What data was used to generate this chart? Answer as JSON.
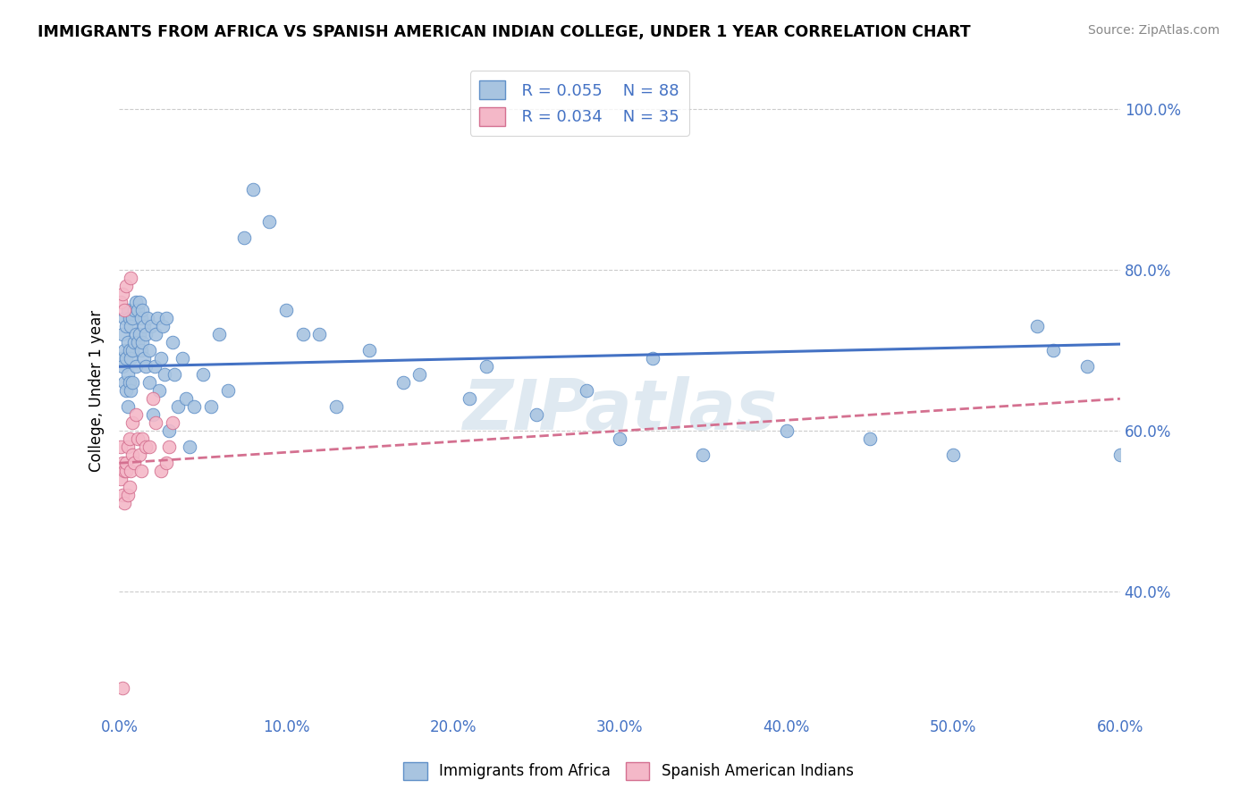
{
  "title": "IMMIGRANTS FROM AFRICA VS SPANISH AMERICAN INDIAN COLLEGE, UNDER 1 YEAR CORRELATION CHART",
  "source": "Source: ZipAtlas.com",
  "ylabel": "College, Under 1 year",
  "legend_blue_r": "R = 0.055",
  "legend_blue_n": "N = 88",
  "legend_pink_r": "R = 0.034",
  "legend_pink_n": "N = 35",
  "legend_label_blue": "Immigrants from Africa",
  "legend_label_pink": "Spanish American Indians",
  "blue_color": "#a8c4e0",
  "pink_color": "#f4b8c8",
  "blue_edge_color": "#6090c8",
  "pink_edge_color": "#d47090",
  "blue_line_color": "#4472c4",
  "pink_line_color": "#d47090",
  "text_color_blue": "#4472c4",
  "watermark": "ZIPatlas",
  "blue_scatter_x": [
    0.001,
    0.002,
    0.002,
    0.003,
    0.003,
    0.003,
    0.004,
    0.004,
    0.004,
    0.005,
    0.005,
    0.005,
    0.005,
    0.006,
    0.006,
    0.006,
    0.007,
    0.007,
    0.007,
    0.008,
    0.008,
    0.008,
    0.009,
    0.009,
    0.01,
    0.01,
    0.01,
    0.011,
    0.011,
    0.012,
    0.012,
    0.013,
    0.013,
    0.014,
    0.014,
    0.015,
    0.015,
    0.016,
    0.016,
    0.017,
    0.018,
    0.018,
    0.019,
    0.02,
    0.021,
    0.022,
    0.023,
    0.024,
    0.025,
    0.026,
    0.027,
    0.028,
    0.03,
    0.032,
    0.033,
    0.035,
    0.038,
    0.04,
    0.042,
    0.045,
    0.05,
    0.055,
    0.06,
    0.065,
    0.075,
    0.08,
    0.09,
    0.1,
    0.12,
    0.15,
    0.18,
    0.21,
    0.25,
    0.3,
    0.35,
    0.4,
    0.45,
    0.5,
    0.55,
    0.56,
    0.58,
    0.6,
    0.32,
    0.28,
    0.22,
    0.17,
    0.13,
    0.11
  ],
  "blue_scatter_y": [
    0.69,
    0.72,
    0.68,
    0.74,
    0.7,
    0.66,
    0.73,
    0.69,
    0.65,
    0.75,
    0.71,
    0.67,
    0.63,
    0.74,
    0.7,
    0.66,
    0.73,
    0.69,
    0.65,
    0.74,
    0.7,
    0.66,
    0.75,
    0.71,
    0.76,
    0.72,
    0.68,
    0.75,
    0.71,
    0.76,
    0.72,
    0.74,
    0.7,
    0.75,
    0.71,
    0.73,
    0.69,
    0.72,
    0.68,
    0.74,
    0.7,
    0.66,
    0.73,
    0.62,
    0.68,
    0.72,
    0.74,
    0.65,
    0.69,
    0.73,
    0.67,
    0.74,
    0.6,
    0.71,
    0.67,
    0.63,
    0.69,
    0.64,
    0.58,
    0.63,
    0.67,
    0.63,
    0.72,
    0.65,
    0.84,
    0.9,
    0.86,
    0.75,
    0.72,
    0.7,
    0.67,
    0.64,
    0.62,
    0.59,
    0.57,
    0.6,
    0.59,
    0.57,
    0.73,
    0.7,
    0.68,
    0.57,
    0.69,
    0.65,
    0.68,
    0.66,
    0.63,
    0.72
  ],
  "pink_scatter_x": [
    0.001,
    0.001,
    0.001,
    0.002,
    0.002,
    0.002,
    0.003,
    0.003,
    0.003,
    0.004,
    0.004,
    0.004,
    0.005,
    0.005,
    0.006,
    0.006,
    0.007,
    0.007,
    0.008,
    0.008,
    0.009,
    0.01,
    0.011,
    0.012,
    0.013,
    0.014,
    0.016,
    0.018,
    0.02,
    0.022,
    0.025,
    0.028,
    0.03,
    0.032,
    0.002
  ],
  "pink_scatter_y": [
    0.58,
    0.54,
    0.76,
    0.56,
    0.52,
    0.77,
    0.55,
    0.51,
    0.75,
    0.55,
    0.78,
    0.56,
    0.58,
    0.52,
    0.59,
    0.53,
    0.79,
    0.55,
    0.61,
    0.57,
    0.56,
    0.62,
    0.59,
    0.57,
    0.55,
    0.59,
    0.58,
    0.58,
    0.64,
    0.61,
    0.55,
    0.56,
    0.58,
    0.61,
    0.28
  ],
  "xlim": [
    0.0,
    0.6
  ],
  "ylim": [
    0.25,
    1.05
  ],
  "y_tick_positions": [
    0.4,
    0.6,
    0.8,
    1.0
  ],
  "y_tick_labels": [
    "40.0%",
    "60.0%",
    "80.0%",
    "100.0%"
  ],
  "x_tick_positions": [
    0.0,
    0.1,
    0.2,
    0.3,
    0.4,
    0.5,
    0.6
  ],
  "x_tick_labels": [
    "0.0%",
    "10.0%",
    "20.0%",
    "30.0%",
    "40.0%",
    "50.0%",
    "60.0%"
  ],
  "blue_trendline_x": [
    0.0,
    0.6
  ],
  "blue_trendline_y": [
    0.68,
    0.708
  ],
  "pink_trendline_x": [
    0.0,
    0.6
  ],
  "pink_trendline_y": [
    0.56,
    0.64
  ]
}
